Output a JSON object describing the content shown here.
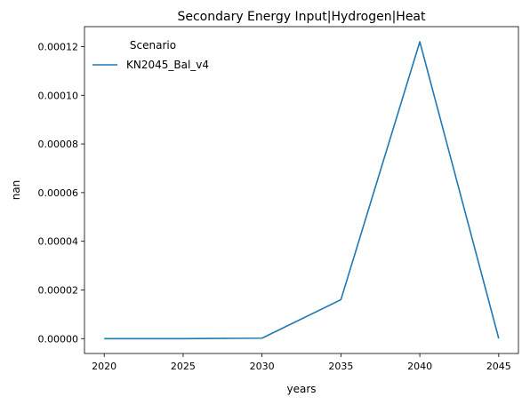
{
  "chart_data": {
    "type": "line",
    "title": "Secondary Energy Input|Hydrogen|Heat",
    "xlabel": "years",
    "ylabel": "nan",
    "x": [
      2020,
      2025,
      2030,
      2035,
      2040,
      2045
    ],
    "xticks": [
      "2020",
      "2025",
      "2030",
      "2035",
      "2040",
      "2045"
    ],
    "xlim": [
      2018.75,
      2046.25
    ],
    "yticks": [
      "0.00000",
      "0.00002",
      "0.00004",
      "0.00006",
      "0.00008",
      "0.00010",
      "0.00012"
    ],
    "ytick_values": [
      0,
      2e-05,
      4e-05,
      6e-05,
      8e-05,
      0.0001,
      0.00012
    ],
    "ylim": [
      -6.1e-06,
      0.0001282
    ],
    "grid": false,
    "legend": {
      "title": "Scenario",
      "placement": "top-left"
    },
    "series": [
      {
        "name": "KN2045_Bal_v4",
        "color": "#1f77b4",
        "values": [
          0.0,
          0.0,
          2e-07,
          1.6e-05,
          0.000122,
          1e-07
        ]
      }
    ]
  }
}
